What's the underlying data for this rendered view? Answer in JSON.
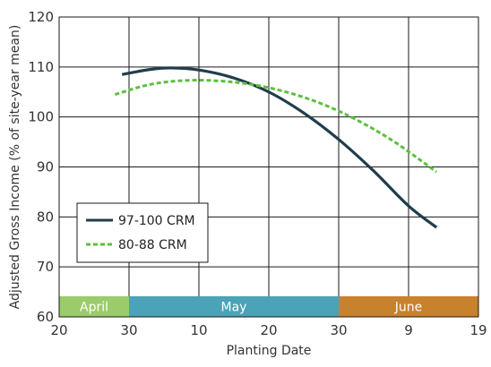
{
  "chart_data": {
    "type": "line",
    "xlabel": "Planting Date",
    "ylabel": "Adjusted Gross Income (% of site-year mean)",
    "ylim": [
      60,
      120
    ],
    "yticks": [
      "60",
      "70",
      "80",
      "90",
      "100",
      "110",
      "120"
    ],
    "x_tick_labels": [
      "20",
      "30",
      "10",
      "20",
      "30",
      "9",
      "19"
    ],
    "x_domain": [
      "Apr 20",
      "Jun 19"
    ],
    "grid": true,
    "legend_position": "lower-left",
    "months": [
      {
        "label": "April",
        "start": "Apr 20",
        "end": "Apr 30",
        "color": "#9bcb6b"
      },
      {
        "label": "May",
        "start": "Apr 30",
        "end": "May 30",
        "color": "#4aa3b8"
      },
      {
        "label": "June",
        "start": "May 30",
        "end": "Jun 19",
        "color": "#c8812c"
      }
    ],
    "series": [
      {
        "name": "97-100 CRM",
        "color": "#1f3d4c",
        "style": "solid",
        "x": [
          "Apr 29",
          "May 3",
          "May 6",
          "May 10",
          "May 15",
          "May 20",
          "May 25",
          "May 30",
          "Jun 4",
          "Jun 9",
          "Jun 13"
        ],
        "values": [
          108.5,
          109.5,
          109.8,
          109.4,
          107.8,
          105.0,
          100.8,
          95.5,
          89.2,
          82.2,
          77.9
        ]
      },
      {
        "name": "80-88 CRM",
        "color": "#5cbf3f",
        "style": "dashed",
        "x": [
          "Apr 28",
          "May 3",
          "May 8",
          "May 13",
          "May 18",
          "May 23",
          "May 28",
          "Jun 2",
          "Jun 7",
          "Jun 13"
        ],
        "values": [
          104.5,
          106.5,
          107.3,
          107.2,
          106.4,
          104.8,
          102.4,
          99.1,
          95.0,
          89.0
        ]
      }
    ]
  }
}
